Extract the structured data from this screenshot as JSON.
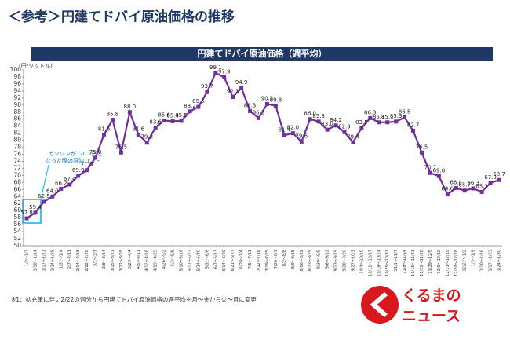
{
  "heading": "＜参考＞円建てドバイ原油価格の推移",
  "footnote": "※1：拡充策に伴い2/22の週分から円建てドバイ原油価格の週平均を月～金から火～月に変更",
  "logo": {
    "line1": "くるまの",
    "line2": "ニュース"
  },
  "chart_data": {
    "type": "line",
    "title": "円建てドバイ原油価格（週平均）",
    "y_label": "(円/リットル)",
    "annotation": [
      "ガソリンが170.2円と",
      "なった際の原油コスト"
    ],
    "categories": [
      "1/3～1/7",
      "1/10～1/14",
      "1/17～1/21",
      "1/24～1/28",
      "1/31～2/4",
      "2/7～2/11",
      "2/14～2/18",
      "2/22～2/28",
      "3/1～3/7",
      "3/8～3/14",
      "3/15～3/21",
      "3/22～3/28",
      "3/29～4/4",
      "4/5～4/11",
      "4/12～4/18",
      "4/19～4/25",
      "4/26～5/2",
      "5/3～5/9",
      "5/10～5/16",
      "5/17～5/23",
      "5/24～5/30",
      "5/31～6/6",
      "6/7～6/13",
      "6/14～6/20",
      "6/21～6/27",
      "6/28～7/4",
      "7/5～7/11",
      "7/12～7/18",
      "7/19～7/25",
      "7/26～8/1",
      "8/2～8/8",
      "8/9～8/15",
      "8/16～8/22",
      "8/23～8/29",
      "8/30～9/5",
      "9/6～9/12",
      "9/13～9/19",
      "9/20～9/26",
      "9/27～10/3",
      "10/4～10/10",
      "10/11～10/17",
      "10/18～10/24",
      "10/25～10/31",
      "11/1～11/7",
      "11/8～11/14",
      "11/15～11/21",
      "11/22～11/28",
      "11/29～12/5",
      "12/6～12/12",
      "12/13～12/19",
      "12/20～12/26",
      "12/27～1/2",
      "1/3～1/9",
      "1/10～1/16",
      "1/17～1/23",
      "1/24～1/30"
    ],
    "series": [
      {
        "name": "円建てドバイ原油価格",
        "color": "#7030a0",
        "values": [
          57.8,
          59.4,
          62.5,
          64,
          66.2,
          67.4,
          69.9,
          71.5,
          75,
          81.6,
          85.8,
          76.5,
          88,
          81.6,
          79.3,
          83.6,
          85.6,
          85.4,
          85.5,
          88.2,
          89.5,
          93.7,
          99.1,
          97.9,
          92.3,
          94.9,
          88.3,
          86.3,
          90.3,
          89.8,
          81.4,
          82,
          79.6,
          86,
          85.3,
          83,
          84.2,
          82.3,
          79.4,
          83.5,
          86.3,
          85.1,
          85.1,
          85.3,
          86.5,
          82.7,
          76.5,
          70.7,
          69.8,
          64.6,
          66.4,
          65.7,
          66.3,
          65.3,
          67.9,
          68.7
        ],
        "value_labels": [
          "57.8",
          "59.4",
          "62.5",
          "64.0",
          "66.2",
          "67.4",
          "69.9",
          "71.5",
          "75.0",
          "81.6",
          "85.8",
          "76.5",
          "88.0",
          "81.6",
          "79.3",
          "83.6",
          "85.6",
          "85.4",
          "85.5",
          "88.2",
          "89.5",
          "93.7",
          "99.1",
          "97.9",
          "92.3",
          "94.9",
          "88.3",
          "86.3",
          "90.3",
          "89.8",
          "81.4",
          "82.0",
          "79.6",
          "86.0",
          "85.3",
          "83.0",
          "84.2",
          "82.3",
          "79.4",
          "83.5",
          "86.3",
          "85.1",
          "85.1",
          "85.3",
          "86.5",
          "82.7",
          "76.5",
          "70.7",
          "69.8",
          "64.6",
          "66.4",
          "65.7",
          "66.3",
          "65.3",
          "67.9",
          "68.7"
        ]
      }
    ],
    "ylim": [
      50,
      100
    ],
    "yticks": [
      50,
      52,
      54,
      56,
      58,
      60,
      62,
      64,
      66,
      68,
      70,
      72,
      74,
      76,
      78,
      80,
      82,
      84,
      86,
      88,
      90,
      92,
      94,
      96,
      98,
      100
    ],
    "grid": false
  }
}
